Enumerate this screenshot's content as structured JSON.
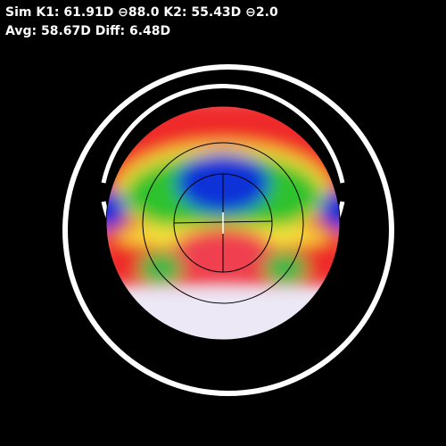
{
  "readout": {
    "line1": "Sim K1: 61.91D ⊖88.0 K2: 55.43D ⊖2.0",
    "line2": "Avg: 58.67D Diff: 6.48D"
  }
}
